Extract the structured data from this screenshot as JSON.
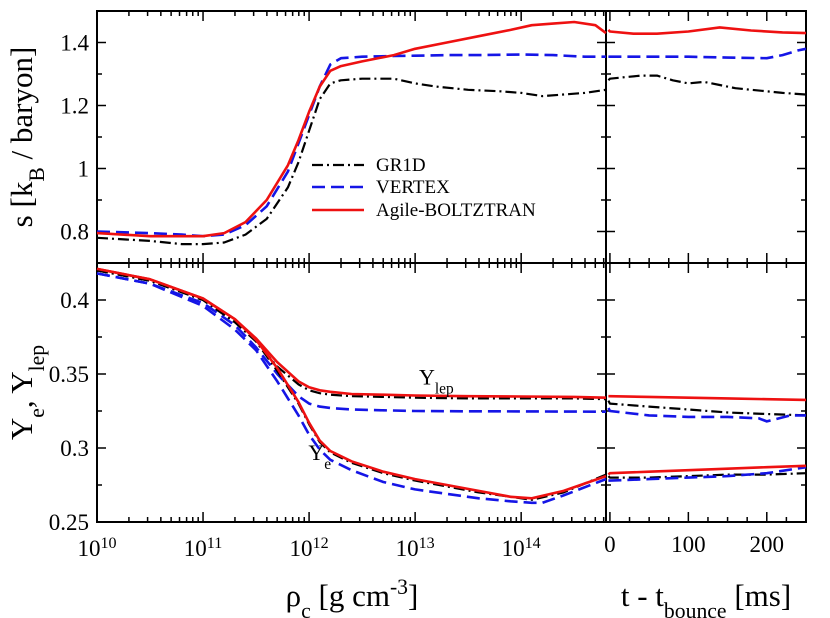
{
  "chart_data": {
    "type": "line",
    "title": "",
    "legend": {
      "position": "middle-right",
      "entries": [
        {
          "name": "GR1D",
          "color": "#000000",
          "dash": "dash-dot"
        },
        {
          "name": "VERTEX",
          "color": "#1515e6",
          "dash": "dashed"
        },
        {
          "name": "Agile-BOLTZTRAN",
          "color": "#ee1111",
          "dash": "solid"
        }
      ]
    },
    "x_axes": {
      "rho": {
        "scale": "log",
        "range_exp": [
          10,
          14.8
        ],
        "label_main": "ρ",
        "label_sub": "c",
        "label_rest": " [g cm",
        "label_sup": "-3",
        "label_end": "]",
        "tick_base": "10",
        "ticks": [
          "10",
          "11",
          "12",
          "13",
          "14"
        ]
      },
      "time": {
        "scale": "linear",
        "range": [
          -5,
          250
        ],
        "label_main": "t - t",
        "label_sub": "bounce",
        "label_end": " [ms]",
        "ticks": [
          "0",
          "100",
          "200"
        ]
      }
    },
    "panels": [
      {
        "id": "top",
        "ylabel_main": "s [k",
        "ylabel_sub": "B",
        "ylabel_end": " / baryon]",
        "ylim": [
          0.7,
          1.5
        ],
        "yticks": [
          {
            "v": 0.8,
            "label": "0.8"
          },
          {
            "v": 1.0,
            "label": "1"
          },
          {
            "v": 1.2,
            "label": "1.2"
          },
          {
            "v": 1.4,
            "label": "1.4"
          }
        ],
        "series": [
          {
            "name": "GR1D",
            "rho_exp": [
              10,
              10.5,
              10.8,
              11,
              11.2,
              11.4,
              11.6,
              11.8,
              11.9,
              12,
              12.1,
              12.2,
              12.3,
              12.5,
              12.8,
              13,
              13.2,
              13.5,
              13.8,
              14,
              14.2,
              14.4,
              14.6,
              14.8
            ],
            "values": [
              0.78,
              0.77,
              0.76,
              0.76,
              0.765,
              0.79,
              0.84,
              0.94,
              1.02,
              1.12,
              1.22,
              1.27,
              1.28,
              1.285,
              1.285,
              1.27,
              1.26,
              1.25,
              1.245,
              1.24,
              1.23,
              1.235,
              1.24,
              1.25
            ],
            "time_ms": [
              -2,
              0,
              20,
              40,
              60,
              80,
              100,
              120,
              140,
              160,
              180,
              200,
              220,
              250
            ],
            "time_values": [
              1.28,
              1.285,
              1.29,
              1.295,
              1.295,
              1.28,
              1.27,
              1.275,
              1.265,
              1.255,
              1.25,
              1.245,
              1.24,
              1.235
            ]
          },
          {
            "name": "VERTEX",
            "rho_exp": [
              10,
              10.5,
              10.8,
              11,
              11.2,
              11.4,
              11.6,
              11.8,
              11.9,
              12,
              12.1,
              12.2,
              12.3,
              12.5,
              12.8,
              13,
              13.3,
              13.6,
              14,
              14.3,
              14.6,
              14.8
            ],
            "values": [
              0.8,
              0.795,
              0.79,
              0.785,
              0.79,
              0.82,
              0.88,
              0.99,
              1.08,
              1.17,
              1.26,
              1.33,
              1.35,
              1.355,
              1.357,
              1.358,
              1.36,
              1.36,
              1.362,
              1.36,
              1.355,
              1.355
            ],
            "time_ms": [
              -2,
              0,
              50,
              100,
              150,
              200,
              220,
              240,
              250
            ],
            "time_values": [
              1.355,
              1.355,
              1.355,
              1.355,
              1.352,
              1.35,
              1.36,
              1.375,
              1.38
            ]
          },
          {
            "name": "Agile-BOLTZTRAN",
            "rho_exp": [
              10,
              10.5,
              10.8,
              11,
              11.2,
              11.4,
              11.6,
              11.8,
              11.9,
              12,
              12.1,
              12.2,
              12.3,
              12.5,
              12.8,
              13,
              13.3,
              13.6,
              13.9,
              14.1,
              14.3,
              14.5,
              14.7,
              14.8
            ],
            "values": [
              0.795,
              0.785,
              0.785,
              0.785,
              0.795,
              0.83,
              0.9,
              1.01,
              1.09,
              1.18,
              1.26,
              1.31,
              1.325,
              1.34,
              1.36,
              1.38,
              1.4,
              1.42,
              1.44,
              1.455,
              1.46,
              1.465,
              1.455,
              1.43
            ],
            "time_ms": [
              -2,
              0,
              30,
              60,
              100,
              140,
              180,
              220,
              250
            ],
            "time_values": [
              1.44,
              1.435,
              1.428,
              1.428,
              1.435,
              1.448,
              1.438,
              1.432,
              1.43
            ]
          }
        ]
      },
      {
        "id": "bottom",
        "ylabel_main": "Y",
        "ylabel_sub": "e",
        "ylabel_mid": ", Y",
        "ylabel_sub2": "lep",
        "ylim": [
          0.25,
          0.425
        ],
        "yticks": [
          {
            "v": 0.25,
            "label": "0.25"
          },
          {
            "v": 0.3,
            "label": "0.3"
          },
          {
            "v": 0.35,
            "label": "0.35"
          },
          {
            "v": 0.4,
            "label": "0.4"
          }
        ],
        "annotations": [
          {
            "id": "ylep",
            "text": "Y",
            "sub": "lep",
            "rho_exp": 13.2,
            "y": 0.343
          },
          {
            "id": "ye",
            "text": "Y",
            "sub": "e",
            "rho_exp": 12.1,
            "y": 0.292
          }
        ],
        "series": [
          {
            "name": "GR1D Ylep",
            "rho_exp": [
              10,
              10.5,
              11,
              11.3,
              11.5,
              11.7,
              11.9,
              12,
              12.1,
              12.2,
              12.4,
              12.7,
              13,
              13.5,
              14,
              14.5,
              14.8
            ],
            "values": [
              0.42,
              0.413,
              0.4,
              0.385,
              0.372,
              0.355,
              0.343,
              0.339,
              0.337,
              0.336,
              0.335,
              0.3345,
              0.334,
              0.3335,
              0.3335,
              0.3335,
              0.333
            ],
            "time_ms": [
              -2,
              0,
              50,
              100,
              150,
              200,
              250
            ],
            "time_values": [
              0.332,
              0.33,
              0.328,
              0.326,
              0.324,
              0.323,
              0.322
            ]
          },
          {
            "name": "VERTEX Ylep",
            "rho_exp": [
              10,
              10.5,
              11,
              11.3,
              11.5,
              11.7,
              11.9,
              12,
              12.1,
              12.2,
              12.4,
              12.7,
              13,
              13.5,
              14,
              14.5,
              14.8
            ],
            "values": [
              0.418,
              0.411,
              0.398,
              0.383,
              0.368,
              0.35,
              0.335,
              0.33,
              0.328,
              0.327,
              0.326,
              0.3255,
              0.325,
              0.3248,
              0.3247,
              0.3246,
              0.3245
            ],
            "time_ms": [
              -2,
              0,
              50,
              100,
              150,
              190,
              200,
              230,
              250
            ],
            "time_values": [
              0.327,
              0.325,
              0.322,
              0.321,
              0.321,
              0.32,
              0.318,
              0.322,
              0.322
            ]
          },
          {
            "name": "Agile-BOLTZTRAN Ylep",
            "rho_exp": [
              10,
              10.5,
              11,
              11.3,
              11.5,
              11.7,
              11.9,
              12,
              12.1,
              12.2,
              12.4,
              12.7,
              13,
              13.5,
              14,
              14.5,
              14.8
            ],
            "values": [
              0.421,
              0.414,
              0.401,
              0.387,
              0.374,
              0.358,
              0.345,
              0.341,
              0.339,
              0.338,
              0.3365,
              0.336,
              0.3355,
              0.335,
              0.3348,
              0.3345,
              0.334
            ],
            "time_ms": [
              -2,
              0,
              50,
              100,
              150,
              200,
              250
            ],
            "time_values": [
              0.335,
              0.335,
              0.3345,
              0.334,
              0.3335,
              0.333,
              0.3325
            ]
          },
          {
            "name": "GR1D Ye",
            "rho_exp": [
              10,
              10.5,
              11,
              11.3,
              11.5,
              11.7,
              11.9,
              12,
              12.1,
              12.2,
              12.4,
              12.7,
              13,
              13.3,
              13.6,
              13.9,
              14.1,
              14.4,
              14.8
            ],
            "values": [
              0.42,
              0.413,
              0.4,
              0.385,
              0.372,
              0.352,
              0.33,
              0.316,
              0.304,
              0.297,
              0.29,
              0.283,
              0.278,
              0.274,
              0.27,
              0.267,
              0.265,
              0.27,
              0.282
            ],
            "time_ms": [
              -2,
              0,
              50,
              100,
              150,
              200,
              250
            ],
            "time_values": [
              0.281,
              0.28,
              0.28,
              0.281,
              0.282,
              0.282,
              0.283
            ]
          },
          {
            "name": "VERTEX Ye",
            "rho_exp": [
              10,
              10.5,
              11,
              11.3,
              11.5,
              11.7,
              11.9,
              12,
              12.1,
              12.2,
              12.4,
              12.7,
              13,
              13.3,
              13.6,
              13.9,
              14.1,
              14.2,
              14.4,
              14.8
            ],
            "values": [
              0.418,
              0.411,
              0.396,
              0.38,
              0.366,
              0.345,
              0.322,
              0.309,
              0.299,
              0.292,
              0.285,
              0.277,
              0.272,
              0.269,
              0.266,
              0.264,
              0.263,
              0.263,
              0.268,
              0.279
            ],
            "time_ms": [
              -2,
              0,
              50,
              100,
              150,
              200,
              250
            ],
            "time_values": [
              0.278,
              0.278,
              0.279,
              0.28,
              0.281,
              0.283,
              0.287
            ]
          },
          {
            "name": "Agile-BOLTZTRAN Ye",
            "rho_exp": [
              10,
              10.5,
              11,
              11.3,
              11.5,
              11.7,
              11.9,
              12,
              12.1,
              12.2,
              12.4,
              12.7,
              13,
              13.3,
              13.6,
              13.9,
              14.1,
              14.4,
              14.8
            ],
            "values": [
              0.421,
              0.414,
              0.401,
              0.387,
              0.373,
              0.354,
              0.331,
              0.317,
              0.305,
              0.298,
              0.291,
              0.284,
              0.279,
              0.275,
              0.271,
              0.267,
              0.266,
              0.271,
              0.281
            ],
            "time_ms": [
              -2,
              0,
              50,
              100,
              150,
              200,
              250
            ],
            "time_values": [
              0.282,
              0.283,
              0.284,
              0.285,
              0.286,
              0.287,
              0.288
            ]
          }
        ]
      }
    ]
  }
}
